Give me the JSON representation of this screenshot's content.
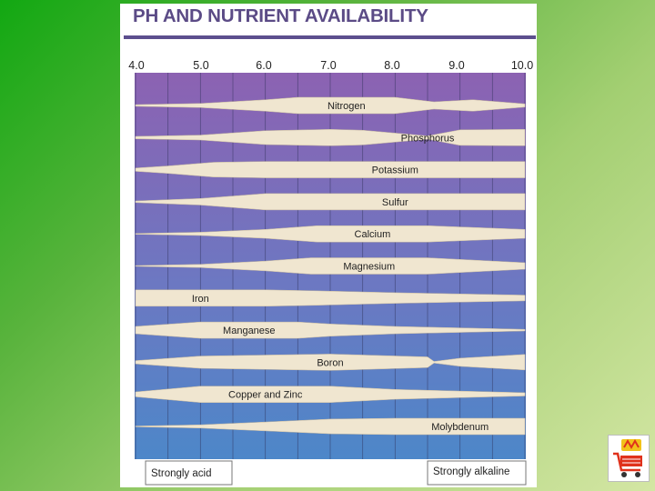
{
  "title": "PH AND NUTRIENT AVAILABILITY",
  "ph_axis": [
    "4.0",
    "5.0",
    "6.0",
    "7.0",
    "8.0",
    "9.0",
    "10.0"
  ],
  "nutrients": [
    {
      "name": "Nitrogen",
      "profile": [
        [
          4,
          0.1
        ],
        [
          5,
          0.25
        ],
        [
          6,
          0.7
        ],
        [
          6.5,
          1
        ],
        [
          8,
          1
        ],
        [
          8.6,
          0.45
        ],
        [
          9.2,
          0.7
        ],
        [
          10,
          0.2
        ]
      ]
    },
    {
      "name": "Phosphorus",
      "profile": [
        [
          4,
          0.15
        ],
        [
          5,
          0.3
        ],
        [
          6,
          0.85
        ],
        [
          7,
          1
        ],
        [
          7.5,
          0.9
        ],
        [
          8.5,
          0.2
        ],
        [
          8.7,
          0.5
        ],
        [
          9,
          0.95
        ],
        [
          10,
          1
        ]
      ]
    },
    {
      "name": "Potassium",
      "profile": [
        [
          4,
          0.2
        ],
        [
          4.5,
          0.45
        ],
        [
          5.2,
          0.9
        ],
        [
          6,
          1
        ],
        [
          10,
          1
        ]
      ]
    },
    {
      "name": "Sulfur",
      "profile": [
        [
          4,
          0.1
        ],
        [
          5,
          0.4
        ],
        [
          6,
          1
        ],
        [
          10,
          1
        ]
      ]
    },
    {
      "name": "Calcium",
      "profile": [
        [
          4,
          0.05
        ],
        [
          5,
          0.2
        ],
        [
          6,
          0.55
        ],
        [
          6.8,
          1
        ],
        [
          8.5,
          1
        ],
        [
          10,
          0.55
        ]
      ]
    },
    {
      "name": "Magnesium",
      "profile": [
        [
          4,
          0.05
        ],
        [
          5,
          0.2
        ],
        [
          6,
          0.6
        ],
        [
          6.7,
          1
        ],
        [
          8.5,
          1
        ],
        [
          10,
          0.4
        ]
      ]
    },
    {
      "name": "Iron",
      "profile": [
        [
          4,
          1
        ],
        [
          6,
          1
        ],
        [
          6.7,
          0.9
        ],
        [
          8,
          0.65
        ],
        [
          10,
          0.35
        ]
      ]
    },
    {
      "name": "Manganese",
      "profile": [
        [
          4,
          0.45
        ],
        [
          5,
          1
        ],
        [
          6.5,
          1
        ],
        [
          7,
          0.75
        ],
        [
          8,
          0.45
        ],
        [
          10,
          0.1
        ]
      ]
    },
    {
      "name": "Boron",
      "profile": [
        [
          4,
          0.2
        ],
        [
          5,
          0.75
        ],
        [
          7,
          1
        ],
        [
          8.5,
          0.65
        ],
        [
          8.6,
          0.1
        ],
        [
          9,
          0.5
        ],
        [
          10,
          0.95
        ]
      ]
    },
    {
      "name": "Copper and Zinc",
      "profile": [
        [
          4,
          0.3
        ],
        [
          5,
          1
        ],
        [
          7,
          1
        ],
        [
          8,
          0.6
        ],
        [
          10,
          0.2
        ]
      ]
    },
    {
      "name": "Molybdenum",
      "profile": [
        [
          4,
          0.05
        ],
        [
          5,
          0.2
        ],
        [
          6,
          0.55
        ],
        [
          7,
          0.9
        ],
        [
          8,
          1
        ],
        [
          10,
          1
        ]
      ]
    }
  ],
  "scale_labels": {
    "acid": "Strongly acid",
    "alkaline": "Strongly alkaline"
  },
  "colors": {
    "title": "#5b4b86",
    "band": "#f0e6d0",
    "grad_top": "#8c62b2",
    "grad_bottom": "#4d87c9"
  }
}
